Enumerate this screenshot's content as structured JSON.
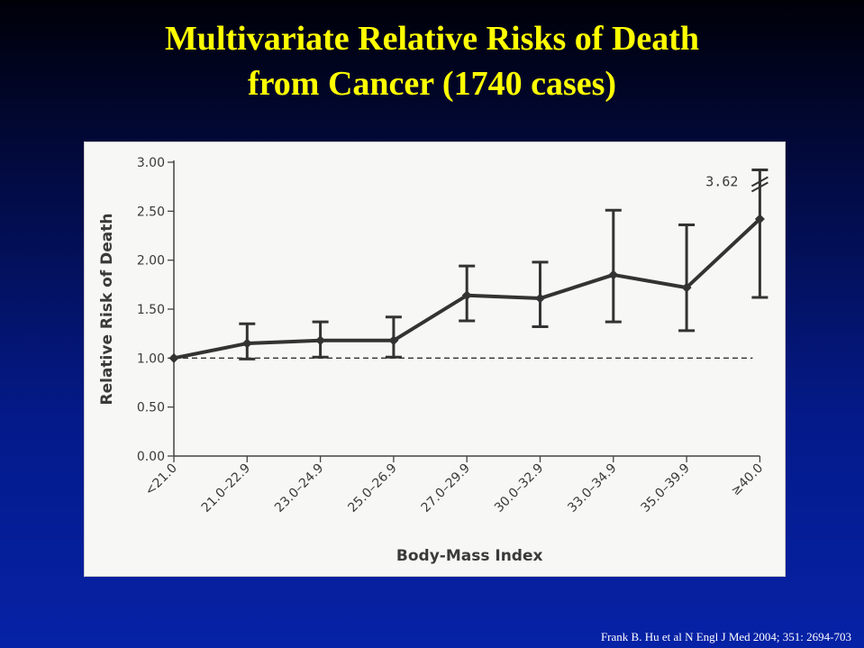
{
  "slide": {
    "title_line1": "Multivariate Relative Risks of Death",
    "title_line2": "from Cancer (1740 cases)",
    "citation": "Frank B. Hu et al N Engl J Med 2004; 351: 2694-703"
  },
  "colors": {
    "title": "#ffff00",
    "background_top": "#000008",
    "background_bottom": "#0622a6",
    "panel": "#f7f7f5",
    "series": "#333333"
  },
  "chart_data": {
    "type": "line",
    "title": "",
    "xlabel": "Body-Mass Index",
    "ylabel": "Relative Risk of Death",
    "categories": [
      "<21.0",
      "21.0–22.9",
      "23.0–24.9",
      "25.0–26.9",
      "27.0–29.9",
      "30.0–32.9",
      "33.0–34.9",
      "35.0–39.9",
      "≥40.0"
    ],
    "values": [
      1.0,
      1.15,
      1.18,
      1.18,
      1.64,
      1.61,
      1.85,
      1.72,
      2.42
    ],
    "ci_lower": [
      1.0,
      0.99,
      1.01,
      1.01,
      1.38,
      1.32,
      1.37,
      1.28,
      1.62
    ],
    "ci_upper": [
      1.0,
      1.35,
      1.37,
      1.42,
      1.94,
      1.98,
      2.51,
      2.36,
      3.62
    ],
    "ylim": [
      0,
      3.0
    ],
    "yticks": [
      "0.00",
      "0.50",
      "1.00",
      "1.50",
      "2.00",
      "2.50",
      "3.00"
    ],
    "reference_line": 1.0,
    "axis_break_label": "3.62",
    "grid": false,
    "legend": "none"
  }
}
